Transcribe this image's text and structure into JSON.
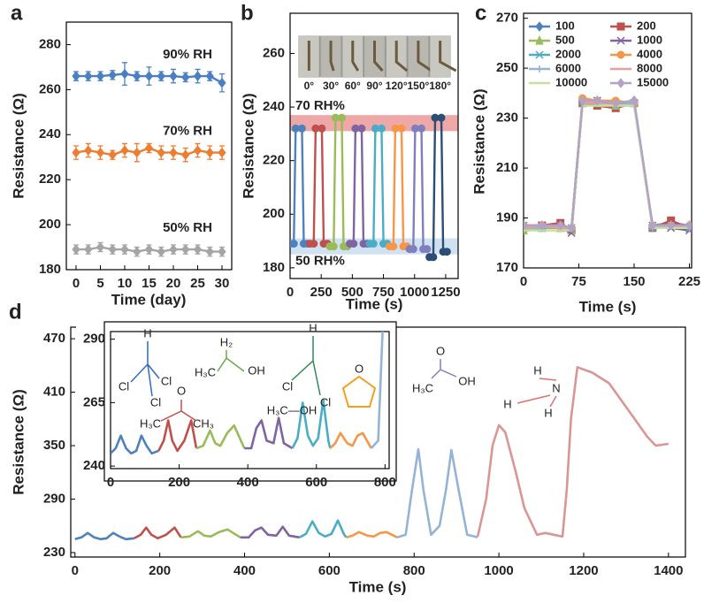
{
  "chart_data": [
    {
      "type": "line",
      "panel": "a",
      "x_label": "Time (day)",
      "y_label": "Resistance (Ω)",
      "xlim": [
        -2,
        32
      ],
      "xticks": [
        0,
        5,
        10,
        15,
        20,
        25,
        30
      ],
      "ylim": [
        180,
        290
      ],
      "yticks": [
        180,
        200,
        220,
        240,
        260,
        280
      ],
      "legend": "inline",
      "x": [
        0,
        2.5,
        5,
        7.5,
        10,
        12.5,
        15,
        17.5,
        20,
        22.5,
        25,
        27.5,
        30
      ],
      "series": [
        {
          "name": "90% RH",
          "color": "#4a7fc1",
          "marker": "diamond",
          "values": [
            266,
            266,
            266,
            266.5,
            267,
            266,
            266,
            266,
            266,
            265.5,
            266,
            266,
            263
          ],
          "errors": [
            2,
            2,
            2,
            2,
            5,
            2,
            4,
            2,
            3,
            2,
            3,
            2,
            4
          ]
        },
        {
          "name": "70% RH",
          "color": "#ed7d31",
          "marker": "diamond",
          "values": [
            232,
            233,
            232,
            231,
            233,
            232,
            234,
            232,
            232,
            231,
            233,
            232,
            232
          ],
          "errors": [
            3,
            3,
            3,
            2,
            3,
            4,
            2,
            3,
            3,
            3,
            3,
            3,
            3
          ]
        },
        {
          "name": "50% RH",
          "color": "#a5a5a5",
          "marker": "diamond",
          "values": [
            189,
            189,
            190,
            189,
            189,
            188,
            189,
            188,
            189,
            189,
            189,
            188,
            188
          ],
          "errors": [
            2,
            2,
            2,
            2,
            2,
            2,
            2,
            2,
            2,
            2,
            2,
            2,
            2
          ]
        }
      ]
    },
    {
      "type": "line",
      "panel": "b",
      "x_label": "Time (s)",
      "y_label": "Resistance (Ω)",
      "xlim": [
        0,
        1350
      ],
      "xticks": [
        0,
        250,
        500,
        750,
        1000,
        1250
      ],
      "ylim": [
        176,
        275
      ],
      "yticks": [
        180,
        200,
        220,
        240,
        260
      ],
      "bands": [
        {
          "label": "70 RH%",
          "range": [
            231,
            237
          ],
          "color": "#e06060"
        },
        {
          "label": "50 RH%",
          "range": [
            185,
            191
          ],
          "color": "#a9cbe8"
        }
      ],
      "image_labels": [
        "0°",
        "30°",
        "60°",
        "90°",
        "120°",
        "150°",
        "180°"
      ],
      "series": [
        {
          "color": "#4f81bd",
          "marker": "circle",
          "x": [
            0,
            30,
            45,
            95,
            110,
            140
          ],
          "values": [
            189,
            189,
            232,
            232,
            189,
            189
          ]
        },
        {
          "color": "#c0504d",
          "marker": "circle",
          "x": [
            160,
            190,
            205,
            255,
            270,
            300
          ],
          "values": [
            189,
            189,
            232,
            232,
            189,
            189
          ]
        },
        {
          "color": "#9bbb59",
          "marker": "circle",
          "x": [
            320,
            350,
            365,
            415,
            430,
            460
          ],
          "values": [
            188,
            188,
            236,
            236,
            188,
            188
          ]
        },
        {
          "color": "#8064a2",
          "marker": "circle",
          "x": [
            480,
            510,
            525,
            575,
            590,
            620
          ],
          "values": [
            189,
            189,
            232,
            232,
            189,
            189
          ]
        },
        {
          "color": "#4bacc6",
          "marker": "circle",
          "x": [
            640,
            670,
            685,
            735,
            750,
            780
          ],
          "values": [
            189,
            189,
            232,
            232,
            189,
            189
          ]
        },
        {
          "color": "#f79646",
          "marker": "circle",
          "x": [
            800,
            830,
            845,
            895,
            910,
            940
          ],
          "values": [
            188,
            188,
            232,
            232,
            188,
            188
          ]
        },
        {
          "color": "#7f7fbf",
          "marker": "circle",
          "x": [
            960,
            990,
            1005,
            1055,
            1070,
            1100
          ],
          "values": [
            187,
            187,
            232,
            232,
            187,
            187
          ]
        },
        {
          "color": "#2c4d75",
          "marker": "circle",
          "x": [
            1120,
            1150,
            1165,
            1215,
            1230,
            1260
          ],
          "values": [
            184,
            184,
            236,
            236,
            186,
            186
          ]
        }
      ]
    },
    {
      "type": "line",
      "panel": "c",
      "x_label": "Time (s)",
      "y_label": "Resistance (Ω)",
      "xlim": [
        0,
        228
      ],
      "xticks": [
        0,
        75,
        150,
        225
      ],
      "ylim": [
        170,
        272
      ],
      "yticks": [
        170,
        190,
        210,
        230,
        250,
        270
      ],
      "legend": "upper-left",
      "x": [
        0,
        25,
        50,
        65,
        80,
        100,
        125,
        150,
        175,
        200,
        225
      ],
      "series": [
        {
          "name": "100",
          "color": "#4f81bd",
          "marker": "diamond",
          "values": [
            187,
            187,
            187,
            186,
            237,
            237,
            236,
            237,
            187,
            188,
            187
          ]
        },
        {
          "name": "200",
          "color": "#c0504d",
          "marker": "square",
          "values": [
            186,
            187,
            188,
            185,
            236,
            235,
            234,
            236,
            186,
            189,
            186
          ]
        },
        {
          "name": "500",
          "color": "#9bbb59",
          "marker": "triangle",
          "values": [
            185,
            186,
            186,
            185,
            236,
            236,
            235,
            236,
            187,
            187,
            187
          ]
        },
        {
          "name": "1000",
          "color": "#8064a2",
          "marker": "x",
          "values": [
            187,
            187,
            186,
            184,
            236,
            237,
            236,
            236,
            187,
            186,
            185
          ]
        },
        {
          "name": "2000",
          "color": "#4bacc6",
          "marker": "x",
          "values": [
            187,
            186,
            187,
            186,
            237,
            236,
            236,
            236,
            186,
            187,
            186
          ]
        },
        {
          "name": "4000",
          "color": "#f79646",
          "marker": "circle",
          "values": [
            187,
            187,
            186,
            186,
            238,
            237,
            237,
            236,
            187,
            187,
            187
          ]
        },
        {
          "name": "6000",
          "color": "#95b3d7",
          "marker": "plus",
          "values": [
            186,
            186,
            187,
            186,
            237,
            236,
            235,
            236,
            186,
            187,
            186
          ]
        },
        {
          "name": "8000",
          "color": "#e6a0a0",
          "marker": "none",
          "values": [
            186,
            187,
            186,
            185,
            236,
            236,
            235,
            235,
            187,
            187,
            186
          ]
        },
        {
          "name": "10000",
          "color": "#c3e0a0",
          "marker": "none",
          "values": [
            185,
            185,
            185,
            185,
            235,
            235,
            235,
            235,
            186,
            186,
            186
          ]
        },
        {
          "name": "15000",
          "color": "#b3a2c7",
          "marker": "diamond",
          "values": [
            187,
            187,
            187,
            186,
            237,
            237,
            236,
            237,
            187,
            187,
            187
          ]
        }
      ]
    },
    {
      "type": "line",
      "panel": "d",
      "x_label": "Time (s)",
      "y_label": "Resistance (Ω)",
      "xlim": [
        -10,
        1440
      ],
      "xticks": [
        0,
        200,
        400,
        600,
        800,
        1000,
        1200,
        1400
      ],
      "ylim": [
        225,
        483
      ],
      "yticks": [
        230,
        290,
        350,
        410,
        470
      ],
      "series": [
        {
          "color": "#4f81bd",
          "x": [
            0,
            15,
            30,
            45,
            60,
            75,
            90,
            105,
            120,
            140
          ],
          "values": [
            245,
            247,
            252,
            247,
            245,
            246,
            252,
            248,
            245,
            246
          ]
        },
        {
          "color": "#c0504d",
          "x": [
            140,
            155,
            168,
            180,
            195,
            215,
            235,
            250
          ],
          "values": [
            246,
            250,
            258,
            250,
            246,
            250,
            258,
            247
          ]
        },
        {
          "color": "#9bbb59",
          "x": [
            250,
            270,
            290,
            305,
            320,
            340,
            360,
            390
          ],
          "values": [
            247,
            248,
            254,
            249,
            248,
            253,
            256,
            247
          ]
        },
        {
          "color": "#8064a2",
          "x": [
            390,
            410,
            425,
            440,
            455,
            475,
            490,
            505,
            530
          ],
          "values": [
            247,
            247,
            255,
            258,
            250,
            249,
            259,
            249,
            247
          ]
        },
        {
          "color": "#4bacc6",
          "x": [
            530,
            545,
            560,
            575,
            590,
            605,
            620,
            635,
            640
          ],
          "values": [
            247,
            251,
            265,
            252,
            248,
            251,
            266,
            250,
            247
          ]
        },
        {
          "color": "#f79646",
          "x": [
            640,
            655,
            670,
            690,
            705,
            720,
            735,
            760
          ],
          "values": [
            247,
            249,
            253,
            249,
            248,
            252,
            253,
            247
          ]
        },
        {
          "color": "#95b3d7",
          "x": [
            760,
            780,
            795,
            810,
            822,
            840,
            860,
            875,
            888,
            905,
            925,
            950
          ],
          "values": [
            247,
            250,
            300,
            346,
            300,
            250,
            260,
            300,
            345,
            300,
            250,
            247
          ]
        },
        {
          "color": "#d99694",
          "x": [
            950,
            970,
            985,
            1000,
            1015,
            1040,
            1060,
            1090,
            1110,
            1150,
            1160,
            1170,
            1185,
            1220,
            1260,
            1290,
            1320,
            1350,
            1370,
            1400
          ],
          "values": [
            248,
            290,
            350,
            373,
            365,
            320,
            280,
            250,
            252,
            248,
            300,
            380,
            438,
            432,
            420,
            400,
            380,
            360,
            350,
            352
          ]
        }
      ],
      "molecules": [
        {
          "color": "#e07070",
          "atoms": [
            "H",
            "N",
            "H",
            "H"
          ]
        },
        {
          "color": "#8080c0",
          "atoms": [
            "O",
            "H₃C",
            "OH"
          ]
        }
      ]
    },
    {
      "type": "line",
      "panel": "d-inset",
      "xlim": [
        0,
        812
      ],
      "xticks": [
        0,
        200,
        400,
        600,
        800
      ],
      "ylim": [
        239,
        293
      ],
      "yticks": [
        240,
        265,
        290
      ],
      "molecules": [
        {
          "color": "#2f6bbf",
          "atoms": [
            "H",
            "Cl",
            "Cl",
            "Cl"
          ]
        },
        {
          "color": "#c0504d",
          "atoms": [
            "O",
            "H₃C",
            "CH₃"
          ]
        },
        {
          "color": "#6aa84f",
          "atoms": [
            "H₂",
            "H₃C",
            "OH"
          ]
        },
        {
          "color": "#7030a0",
          "atoms": [
            "H₃C—OH"
          ]
        },
        {
          "color": "#2e8b57",
          "atoms": [
            "H",
            "Cl",
            "Cl"
          ]
        },
        {
          "color": "#f0a020",
          "atoms": [
            "O"
          ]
        }
      ]
    }
  ]
}
